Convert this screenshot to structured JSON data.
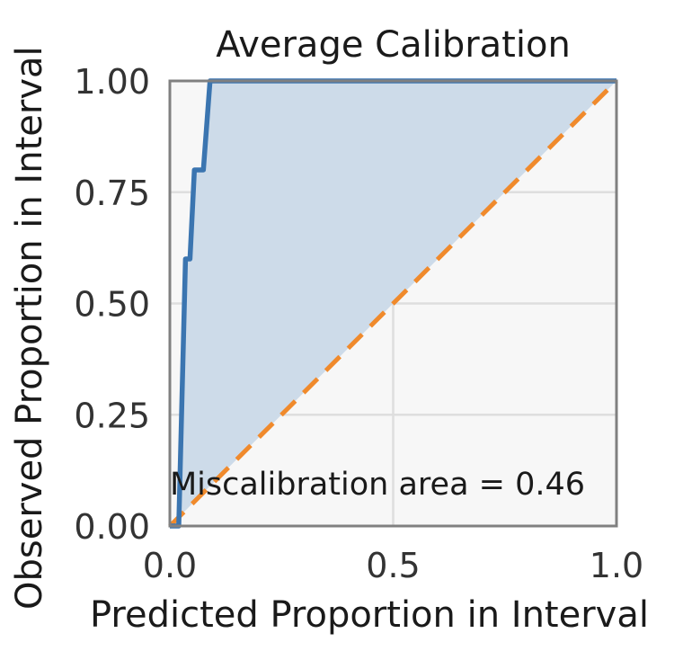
{
  "chart_data": {
    "type": "line",
    "title": "Average Calibration",
    "xlabel": "Predicted Proportion in Interval",
    "ylabel": "Observed Proportion in Interval",
    "xlim": [
      0,
      1
    ],
    "ylim": [
      0,
      1
    ],
    "xticks": [
      0.0,
      0.5,
      1.0
    ],
    "xtick_labels": [
      "0.0",
      "0.5",
      "1.0"
    ],
    "yticks": [
      0.0,
      0.25,
      0.5,
      0.75,
      1.0
    ],
    "ytick_labels": [
      "0.00",
      "0.25",
      "0.50",
      "0.75",
      "1.00"
    ],
    "grid": true,
    "series": [
      {
        "role": "model",
        "color": "#3b75b0",
        "fill_color": "#cddbe9",
        "points": [
          [
            0.0,
            0.0
          ],
          [
            0.02,
            0.0
          ],
          [
            0.035,
            0.6
          ],
          [
            0.045,
            0.6
          ],
          [
            0.055,
            0.8
          ],
          [
            0.075,
            0.8
          ],
          [
            0.09,
            1.0
          ],
          [
            1.0,
            1.0
          ]
        ]
      },
      {
        "role": "ideal",
        "color": "#f08a2c",
        "dashed": true,
        "points": [
          [
            0.0,
            0.0
          ],
          [
            1.0,
            1.0
          ]
        ]
      }
    ],
    "annotation": "Miscalibration area = 0.46"
  }
}
